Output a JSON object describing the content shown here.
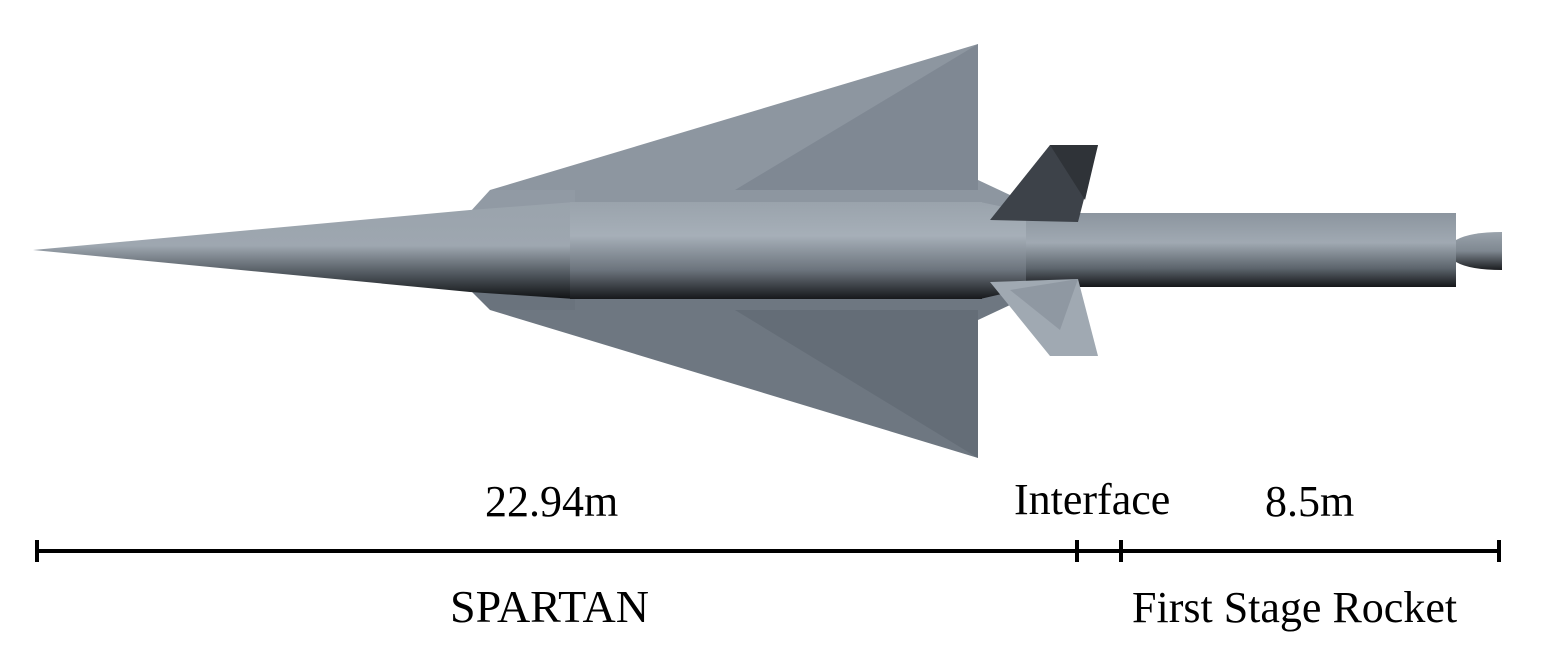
{
  "labels": {
    "spartan_length": "22.94m",
    "interface": "Interface",
    "rocket_length": "8.5m",
    "spartan": "SPARTAN",
    "rocket": "First Stage Rocket"
  },
  "colors": {
    "body_light": "#a2abb4",
    "body_mid": "#8a939d",
    "body_dark": "#1f2226",
    "wing_top": "#8b949e",
    "wing_bottom": "#77808a",
    "fin_dark": "#3c4148",
    "fin_light": "#9aa3ad",
    "scale_line": "#000000"
  }
}
